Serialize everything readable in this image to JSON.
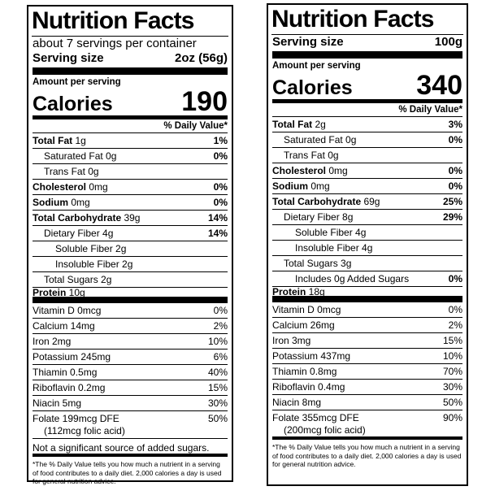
{
  "left": {
    "title": "Nutrition Facts",
    "servings_per_container": "about 7 servings per container",
    "serving_size_label": "Serving size",
    "serving_size_value": "2oz (56g)",
    "amount_per_serving": "Amount per serving",
    "calories_label": "Calories",
    "calories_value": "190",
    "dv_header": "% Daily Value*",
    "nutrients": [
      {
        "bold": "Total Fat",
        "rest": " 1g",
        "dv": "1%"
      },
      {
        "bold": "",
        "rest": "Saturated Fat 0g",
        "dv": "0%"
      },
      {
        "bold": "",
        "rest": "Trans Fat 0g",
        "dv": ""
      },
      {
        "bold": "Cholesterol",
        "rest": " 0mg",
        "dv": "0%"
      },
      {
        "bold": "Sodium",
        "rest": " 0mg",
        "dv": "0%"
      },
      {
        "bold": "Total Carbohydrate",
        "rest": " 39g",
        "dv": "14%"
      },
      {
        "bold": "",
        "rest": "Dietary Fiber 4g",
        "dv": "14%"
      },
      {
        "bold": "",
        "rest": "Soluble Fiber 2g",
        "dv": ""
      },
      {
        "bold": "",
        "rest": "Insoluble Fiber 2g",
        "dv": ""
      },
      {
        "bold": "",
        "rest": "Total Sugars 2g",
        "dv": ""
      },
      {
        "bold": "Protein",
        "rest": " 10g",
        "dv": ""
      }
    ],
    "vitamins": [
      {
        "name": "Vitamin D 0mcg",
        "dv": "0%"
      },
      {
        "name": "Calcium 14mg",
        "dv": "2%"
      },
      {
        "name": "Iron 2mg",
        "dv": "10%"
      },
      {
        "name": "Potassium 245mg",
        "dv": "6%"
      },
      {
        "name": "Thiamin 0.5mg",
        "dv": "40%"
      },
      {
        "name": "Riboflavin 0.2mg",
        "dv": "15%"
      },
      {
        "name": "Niacin 5mg",
        "dv": "30%"
      }
    ],
    "folate": {
      "name": "Folate 199mcg DFE",
      "sub": "(112mcg folic acid)",
      "dv": "50%"
    },
    "added_sugars_note": "Not a significant source of added sugars.",
    "footnote": "*The % Daily Value tells you how much a nutrient in a serving of food contributes to a daily diet. 2,000 calories a day is used for general nutrition advice."
  },
  "right": {
    "title": "Nutrition Facts",
    "serving_size_label": "Serving size",
    "serving_size_value": "100g",
    "amount_per_serving": "Amount per serving",
    "calories_label": "Calories",
    "calories_value": "340",
    "dv_header": "% Daily Value*",
    "nutrients": [
      {
        "bold": "Total Fat",
        "rest": " 2g",
        "dv": "3%"
      },
      {
        "bold": "",
        "rest": "Saturated Fat 0g",
        "dv": "0%"
      },
      {
        "bold": "",
        "rest": "Trans Fat 0g",
        "dv": ""
      },
      {
        "bold": "Cholesterol",
        "rest": " 0mg",
        "dv": "0%"
      },
      {
        "bold": "Sodium",
        "rest": " 0mg",
        "dv": "0%"
      },
      {
        "bold": "Total Carbohydrate",
        "rest": " 69g",
        "dv": "25%"
      },
      {
        "bold": "",
        "rest": "Dietary Fiber 8g",
        "dv": "29%"
      },
      {
        "bold": "",
        "rest": "Soluble Fiber 4g",
        "dv": ""
      },
      {
        "bold": "",
        "rest": "Insoluble Fiber 4g",
        "dv": ""
      },
      {
        "bold": "",
        "rest": "Total Sugars 3g",
        "dv": ""
      },
      {
        "bold": "",
        "rest": "Includes 0g Added Sugars",
        "dv": "0%"
      },
      {
        "bold": "Protein",
        "rest": " 18g",
        "dv": ""
      }
    ],
    "vitamins": [
      {
        "name": "Vitamin D 0mcg",
        "dv": "0%"
      },
      {
        "name": "Calcium 26mg",
        "dv": "2%"
      },
      {
        "name": "Iron 3mg",
        "dv": "15%"
      },
      {
        "name": "Potassium 437mg",
        "dv": "10%"
      },
      {
        "name": "Thiamin 0.8mg",
        "dv": "70%"
      },
      {
        "name": "Riboflavin 0.4mg",
        "dv": "30%"
      },
      {
        "name": "Niacin 8mg",
        "dv": "50%"
      }
    ],
    "folate": {
      "name": "Folate 355mcg DFE",
      "sub": "(200mcg folic acid)",
      "dv": "90%"
    },
    "footnote": "*The % Daily Value tells you how much a nutrient in a serving of food contributes to a daily diet. 2,000 calories a day is used for general nutrition advice."
  }
}
